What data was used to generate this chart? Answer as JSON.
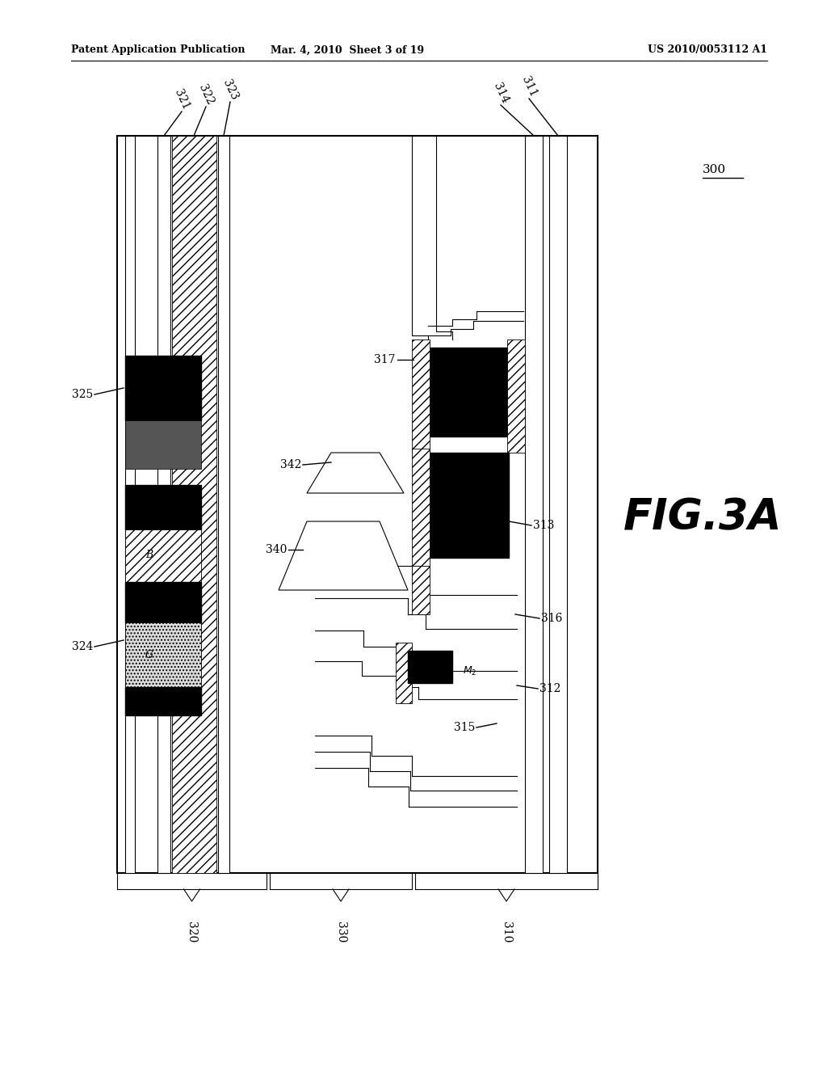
{
  "title_left": "Patent Application Publication",
  "title_center": "Mar. 4, 2010  Sheet 3 of 19",
  "title_right": "US 2010/0053112 A1",
  "fig_label": "FIG.3A",
  "background_color": "#ffffff"
}
